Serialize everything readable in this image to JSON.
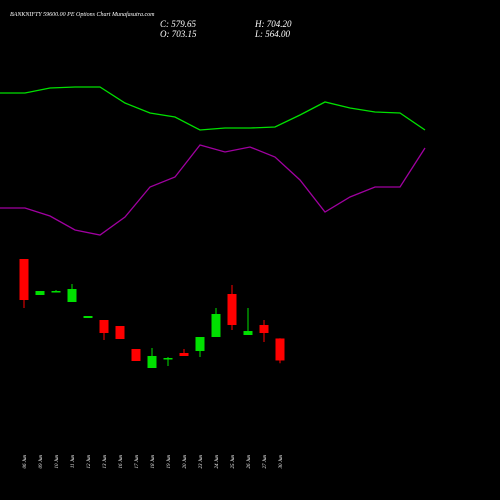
{
  "header": {
    "title": "BANKNIFTY 59600.00 PE Options Chart Munafasutra.com",
    "close": "C: 579.65",
    "open": "O: 703.15",
    "high": "H: 704.20",
    "low": "L: 564.00"
  },
  "chart_data": [
    {
      "type": "line",
      "categories": [
        null,
        null,
        null,
        null,
        null,
        null,
        null,
        null,
        null,
        null,
        null,
        null,
        null,
        null,
        null,
        null,
        null,
        null
      ],
      "ylim": [
        0,
        100
      ],
      "series": [
        {
          "color": "#00e000",
          "values": [
            83.5,
            83.5,
            86,
            86.5,
            86.5,
            78.5,
            73.5,
            71.5,
            65,
            66,
            66,
            66.5,
            72.5,
            79,
            76,
            74,
            73.5,
            65
          ]
        },
        {
          "color": "#a000a0",
          "values": [
            26,
            26,
            22,
            15,
            12.5,
            21.5,
            36.5,
            41.5,
            57.5,
            54,
            56.5,
            51.5,
            40,
            24,
            31.5,
            36.5,
            36.5,
            56
          ]
        }
      ]
    },
    {
      "type": "candlestick",
      "categories": [
        "06 Jun",
        "09 Jun",
        "10 Jun",
        "11 Jun",
        "12 Jun",
        "13 Jun",
        "16 Jun",
        "17 Jun",
        "18 Jun",
        "19 Jun",
        "20 Jun",
        "23 Jun",
        "24 Jun",
        "25 Jun",
        "26 Jun",
        "27 Jun",
        "30 Jun"
      ],
      "ylim": [
        470,
        1200
      ],
      "up_color": "#00e000",
      "down_color": "#ff0000",
      "open": [
        1149.4,
        947.3,
        964.1,
        908.0,
        818.1,
        806.9,
        773.2,
        644.1,
        537.4,
        587.9,
        621.6,
        632.8,
        711.4,
        952.9,
        722.7,
        778.8,
        703.15
      ],
      "high": [
        1149.4,
        969.7,
        975.4,
        1009.0,
        829.4,
        806.9,
        773.2,
        644.1,
        649.7,
        599.1,
        644.1,
        711.4,
        874.3,
        1003.4,
        874.3,
        806.9,
        704.2
      ],
      "low": [
        874.3,
        947.3,
        964.1,
        908.0,
        818.1,
        694.6,
        700.2,
        576.7,
        537.4,
        548.6,
        604.8,
        599.1,
        711.4,
        750.8,
        722.7,
        683.4,
        564.0
      ],
      "close": [
        919.2,
        969.7,
        969.7,
        981.0,
        829.4,
        733.9,
        700.2,
        576.7,
        604.8,
        593.5,
        604.8,
        711.4,
        840.6,
        778.8,
        745.1,
        733.9,
        579.65
      ]
    }
  ]
}
